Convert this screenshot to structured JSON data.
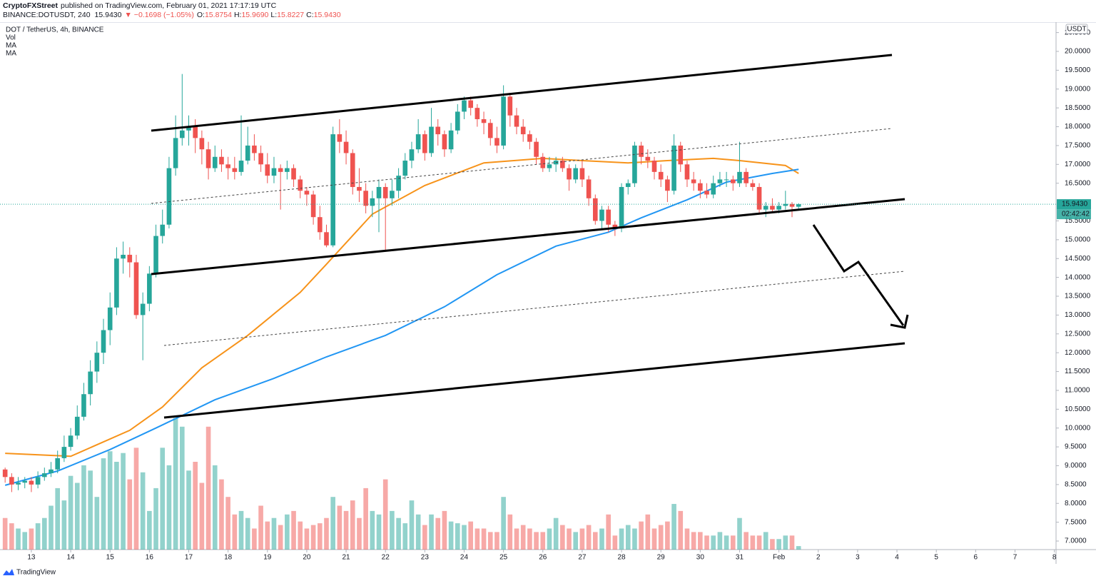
{
  "header": {
    "publisher": "CryptoFXStreet",
    "published": "published on TradingView.com, February 01, 2021 17:17:19 UTC",
    "symbol": "BINANCE:DOTUSDT, 240",
    "last": "15.9430",
    "change": "▼ −0.1698 (−1.05%)",
    "ohlc": [
      {
        "label": "O:",
        "value": "15.8754"
      },
      {
        "label": "H:",
        "value": "15.9690"
      },
      {
        "label": "L:",
        "value": "15.8227"
      },
      {
        "label": "C:",
        "value": "15.9430"
      }
    ]
  },
  "footer": {
    "brand": "TradingView"
  },
  "chart_data": {
    "type": "candlestick",
    "title": "DOT / TetherUS, 4h, BINANCE",
    "volume_name": "Vol",
    "currency": "USDT",
    "last_price_label": "15.9430",
    "countdown": "02:42:42",
    "up_color": "#26a69a",
    "down_color": "#ef5350",
    "grid": false,
    "xlim": [
      -0.78,
      160.26
    ],
    "ylim": [
      6.773,
      20.758
    ],
    "volume_ylim": [
      0,
      300
    ],
    "xticks": [
      {
        "value": 4,
        "label": "13"
      },
      {
        "value": 10,
        "label": "14"
      },
      {
        "value": 16,
        "label": "15"
      },
      {
        "value": 22,
        "label": "16"
      },
      {
        "value": 28,
        "label": "17"
      },
      {
        "value": 34,
        "label": "18"
      },
      {
        "value": 40,
        "label": "19"
      },
      {
        "value": 46,
        "label": "20"
      },
      {
        "value": 52,
        "label": "21"
      },
      {
        "value": 58,
        "label": "22"
      },
      {
        "value": 64,
        "label": "23"
      },
      {
        "value": 70,
        "label": "24"
      },
      {
        "value": 76,
        "label": "25"
      },
      {
        "value": 82,
        "label": "26"
      },
      {
        "value": 88,
        "label": "27"
      },
      {
        "value": 94,
        "label": "28"
      },
      {
        "value": 100,
        "label": "29"
      },
      {
        "value": 106,
        "label": "30"
      },
      {
        "value": 112,
        "label": "31"
      },
      {
        "value": 118,
        "label": "Feb"
      },
      {
        "value": 124,
        "label": "2"
      },
      {
        "value": 130,
        "label": "3"
      },
      {
        "value": 136,
        "label": "4"
      },
      {
        "value": 142,
        "label": "5"
      },
      {
        "value": 148,
        "label": "6"
      },
      {
        "value": 154,
        "label": "7"
      },
      {
        "value": 160,
        "label": "8"
      }
    ],
    "yticks": [
      {
        "value": 7,
        "label": "7.0000"
      },
      {
        "value": 7.5,
        "label": "7.5000"
      },
      {
        "value": 8,
        "label": "8.0000"
      },
      {
        "value": 8.5,
        "label": "8.5000"
      },
      {
        "value": 9,
        "label": "9.0000"
      },
      {
        "value": 9.5,
        "label": "9.5000"
      },
      {
        "value": 10,
        "label": "10.0000"
      },
      {
        "value": 10.5,
        "label": "10.5000"
      },
      {
        "value": 11,
        "label": "11.0000"
      },
      {
        "value": 11.5,
        "label": "11.5000"
      },
      {
        "value": 12,
        "label": "12.0000"
      },
      {
        "value": 12.5,
        "label": "12.5000"
      },
      {
        "value": 13,
        "label": "13.0000"
      },
      {
        "value": 13.5,
        "label": "13.5000"
      },
      {
        "value": 14,
        "label": "14.0000"
      },
      {
        "value": 14.5,
        "label": "14.5000"
      },
      {
        "value": 15,
        "label": "15.0000"
      },
      {
        "value": 15.5,
        "label": "15.5000"
      },
      {
        "value": 16.5,
        "label": "16.5000"
      },
      {
        "value": 17,
        "label": "17.0000"
      },
      {
        "value": 17.5,
        "label": "17.5000"
      },
      {
        "value": 18,
        "label": "18.0000"
      },
      {
        "value": 18.5,
        "label": "18.5000"
      },
      {
        "value": 19,
        "label": "19.0000"
      },
      {
        "value": 19.5,
        "label": "19.5000"
      },
      {
        "value": 20,
        "label": "20.0000"
      },
      {
        "value": 20.5,
        "label": "20.5000"
      }
    ],
    "candles": [
      [
        8.9,
        8.95,
        8.55,
        8.7
      ],
      [
        8.7,
        8.8,
        8.3,
        8.5
      ],
      [
        8.5,
        8.7,
        8.35,
        8.55
      ],
      [
        8.55,
        8.7,
        8.4,
        8.6
      ],
      [
        8.6,
        8.7,
        8.3,
        8.5
      ],
      [
        8.5,
        8.85,
        8.4,
        8.7
      ],
      [
        8.7,
        8.95,
        8.6,
        8.8
      ],
      [
        8.8,
        9.1,
        8.7,
        8.9
      ],
      [
        8.9,
        9.4,
        8.8,
        9.2
      ],
      [
        9.2,
        9.8,
        9.1,
        9.5
      ],
      [
        9.5,
        10.0,
        9.4,
        9.8
      ],
      [
        9.8,
        10.6,
        9.7,
        10.3
      ],
      [
        10.3,
        11.2,
        10.2,
        10.9
      ],
      [
        10.9,
        11.8,
        10.6,
        11.5
      ],
      [
        11.5,
        12.3,
        11.2,
        12.0
      ],
      [
        12.0,
        12.9,
        11.7,
        12.6
      ],
      [
        12.6,
        13.6,
        12.2,
        13.2
      ],
      [
        13.2,
        14.8,
        13.0,
        14.5
      ],
      [
        14.5,
        14.95,
        14.1,
        14.6
      ],
      [
        14.6,
        14.8,
        14.0,
        14.4
      ],
      [
        14.4,
        14.6,
        12.9,
        13.0
      ],
      [
        13.0,
        13.6,
        11.8,
        13.3
      ],
      [
        13.3,
        14.3,
        13.1,
        14.1
      ],
      [
        14.1,
        15.4,
        14.0,
        15.1
      ],
      [
        15.1,
        15.8,
        14.9,
        15.4
      ],
      [
        15.4,
        17.2,
        15.3,
        16.9
      ],
      [
        16.9,
        18.3,
        16.7,
        17.7
      ],
      [
        17.7,
        19.4,
        17.5,
        17.9
      ],
      [
        17.9,
        18.3,
        17.5,
        18.0
      ],
      [
        18.0,
        18.2,
        17.3,
        17.7
      ],
      [
        17.7,
        17.9,
        17.0,
        17.4
      ],
      [
        17.4,
        17.6,
        16.6,
        16.9
      ],
      [
        16.9,
        17.5,
        16.8,
        17.2
      ],
      [
        17.2,
        17.4,
        16.8,
        17.0
      ],
      [
        17.0,
        17.2,
        16.6,
        16.9
      ],
      [
        16.9,
        17.2,
        16.6,
        16.8
      ],
      [
        16.8,
        18.3,
        16.7,
        17.1
      ],
      [
        17.1,
        18.0,
        17.0,
        17.5
      ],
      [
        17.5,
        17.8,
        17.1,
        17.3
      ],
      [
        17.3,
        17.5,
        16.8,
        17.0
      ],
      [
        17.0,
        17.3,
        16.5,
        16.7
      ],
      [
        16.7,
        17.2,
        16.5,
        16.9
      ],
      [
        16.9,
        17.0,
        15.8,
        16.8
      ],
      [
        16.8,
        17.1,
        16.6,
        16.9
      ],
      [
        16.9,
        17.0,
        16.4,
        16.6
      ],
      [
        16.6,
        16.7,
        16.1,
        16.3
      ],
      [
        16.3,
        16.4,
        15.9,
        16.2
      ],
      [
        16.2,
        16.3,
        15.4,
        15.6
      ],
      [
        15.6,
        15.9,
        15.0,
        15.2
      ],
      [
        15.2,
        15.4,
        14.8,
        14.85
      ],
      [
        14.85,
        18.0,
        14.8,
        17.8
      ],
      [
        17.8,
        18.2,
        17.3,
        17.6
      ],
      [
        17.6,
        17.9,
        17.0,
        17.3
      ],
      [
        17.3,
        17.4,
        16.2,
        16.4
      ],
      [
        16.4,
        16.9,
        16.0,
        16.3
      ],
      [
        16.3,
        16.5,
        15.7,
        15.9
      ],
      [
        15.9,
        16.3,
        15.6,
        16.1
      ],
      [
        16.1,
        16.6,
        15.2,
        16.4
      ],
      [
        16.4,
        16.5,
        14.7,
        16.1
      ],
      [
        16.1,
        16.6,
        15.9,
        16.3
      ],
      [
        16.3,
        16.9,
        16.1,
        16.7
      ],
      [
        16.7,
        17.3,
        16.6,
        17.1
      ],
      [
        17.1,
        17.6,
        16.9,
        17.4
      ],
      [
        17.4,
        18.2,
        17.3,
        17.8
      ],
      [
        17.8,
        17.9,
        17.1,
        17.3
      ],
      [
        17.3,
        18.5,
        17.2,
        18.0
      ],
      [
        18.0,
        18.2,
        17.5,
        17.8
      ],
      [
        17.8,
        17.9,
        17.2,
        17.4
      ],
      [
        17.4,
        18.1,
        17.3,
        17.9
      ],
      [
        17.9,
        18.6,
        17.8,
        18.4
      ],
      [
        18.4,
        18.8,
        18.2,
        18.7
      ],
      [
        18.7,
        18.8,
        18.3,
        18.5
      ],
      [
        18.5,
        18.6,
        18.0,
        18.2
      ],
      [
        18.2,
        18.4,
        17.8,
        18.1
      ],
      [
        18.1,
        18.2,
        17.5,
        17.7
      ],
      [
        17.7,
        18.0,
        17.3,
        17.5
      ],
      [
        17.5,
        19.1,
        17.4,
        18.8
      ],
      [
        18.8,
        18.9,
        18.0,
        18.3
      ],
      [
        18.3,
        18.5,
        17.8,
        18.0
      ],
      [
        18.0,
        18.2,
        17.6,
        17.8
      ],
      [
        17.8,
        17.9,
        17.4,
        17.6
      ],
      [
        17.6,
        17.7,
        17.0,
        17.2
      ],
      [
        17.2,
        17.3,
        16.8,
        16.9
      ],
      [
        16.9,
        17.2,
        16.8,
        17.0
      ],
      [
        17.0,
        17.2,
        16.8,
        17.1
      ],
      [
        17.1,
        17.2,
        16.8,
        16.9
      ],
      [
        16.9,
        17.0,
        16.3,
        16.6
      ],
      [
        16.6,
        17.0,
        16.5,
        16.9
      ],
      [
        16.9,
        17.1,
        16.4,
        16.6
      ],
      [
        16.6,
        16.7,
        15.9,
        16.1
      ],
      [
        16.1,
        16.2,
        15.4,
        15.5
      ],
      [
        15.5,
        15.9,
        15.3,
        15.8
      ],
      [
        15.8,
        15.9,
        15.2,
        15.4
      ],
      [
        15.4,
        15.5,
        15.1,
        15.3
      ],
      [
        15.3,
        16.5,
        15.2,
        16.4
      ],
      [
        16.4,
        16.6,
        16.2,
        16.5
      ],
      [
        16.5,
        17.6,
        16.4,
        17.5
      ],
      [
        17.5,
        17.6,
        17.0,
        17.2
      ],
      [
        17.2,
        17.4,
        16.9,
        17.1
      ],
      [
        17.1,
        17.2,
        16.6,
        16.8
      ],
      [
        16.8,
        17.0,
        16.4,
        16.6
      ],
      [
        16.6,
        16.7,
        16.0,
        16.3
      ],
      [
        16.3,
        17.8,
        16.2,
        17.5
      ],
      [
        17.5,
        17.6,
        16.8,
        17.0
      ],
      [
        17.0,
        17.1,
        16.4,
        16.6
      ],
      [
        16.6,
        16.8,
        16.3,
        16.5
      ],
      [
        16.5,
        16.6,
        16.1,
        16.3
      ],
      [
        16.3,
        16.5,
        16.1,
        16.2
      ],
      [
        16.2,
        16.7,
        16.1,
        16.5
      ],
      [
        16.5,
        16.8,
        16.4,
        16.6
      ],
      [
        16.6,
        16.8,
        16.4,
        16.6
      ],
      [
        16.6,
        16.7,
        16.3,
        16.5
      ],
      [
        16.5,
        17.6,
        16.4,
        16.8
      ],
      [
        16.8,
        16.9,
        16.4,
        16.5
      ],
      [
        16.5,
        16.6,
        16.3,
        16.4
      ],
      [
        16.4,
        16.5,
        15.7,
        15.8
      ],
      [
        15.8,
        16.0,
        15.6,
        15.9
      ],
      [
        15.9,
        16.1,
        15.7,
        15.8
      ],
      [
        15.8,
        16.0,
        15.7,
        15.9
      ],
      [
        15.9,
        16.3,
        15.8,
        15.95
      ],
      [
        15.95,
        16.0,
        15.6,
        15.8754
      ],
      [
        15.8754,
        15.969,
        15.8227,
        15.943
      ]
    ],
    "volumes": [
      18,
      15,
      12,
      10,
      12,
      15,
      18,
      25,
      35,
      28,
      42,
      38,
      48,
      45,
      30,
      52,
      56,
      50,
      55,
      40,
      58,
      44,
      22,
      35,
      58,
      48,
      75,
      70,
      45,
      50,
      38,
      70,
      48,
      40,
      30,
      20,
      22,
      18,
      12,
      25,
      16,
      18,
      14,
      20,
      22,
      16,
      12,
      14,
      15,
      18,
      30,
      25,
      22,
      28,
      18,
      35,
      22,
      20,
      40,
      22,
      18,
      15,
      28,
      20,
      14,
      20,
      18,
      22,
      16,
      15,
      14,
      16,
      12,
      12,
      10,
      10,
      30,
      20,
      12,
      14,
      12,
      10,
      10,
      12,
      18,
      14,
      12,
      10,
      12,
      14,
      10,
      12,
      20,
      8,
      12,
      14,
      12,
      16,
      20,
      12,
      14,
      16,
      26,
      22,
      12,
      10,
      10,
      8,
      8,
      10,
      8,
      8,
      18,
      10,
      8,
      8,
      10,
      6,
      6,
      8,
      8,
      2
    ],
    "series": [
      {
        "name": "MA",
        "color": "#f7931a",
        "x": [
          0,
          10,
          19,
          24,
          30,
          37,
          45,
          49,
          56,
          64,
          73,
          82,
          88,
          95,
          101,
          108,
          112,
          119,
          121
        ],
        "values": [
          9.33,
          9.25,
          9.94,
          10.56,
          11.6,
          12.46,
          13.6,
          14.35,
          15.68,
          16.44,
          17.04,
          17.16,
          17.1,
          17.04,
          17.1,
          17.16,
          17.1,
          16.97,
          16.76
        ]
      },
      {
        "name": "MA",
        "color": "#2196f3",
        "x": [
          0,
          8,
          16,
          23,
          32,
          41,
          49,
          58,
          67,
          75,
          84,
          92,
          97,
          104,
          110,
          117,
          121
        ],
        "values": [
          8.48,
          8.86,
          9.43,
          10.0,
          10.75,
          11.32,
          11.89,
          12.46,
          13.22,
          14.07,
          14.83,
          15.2,
          15.58,
          16.06,
          16.53,
          16.76,
          16.87
        ]
      }
    ]
  }
}
